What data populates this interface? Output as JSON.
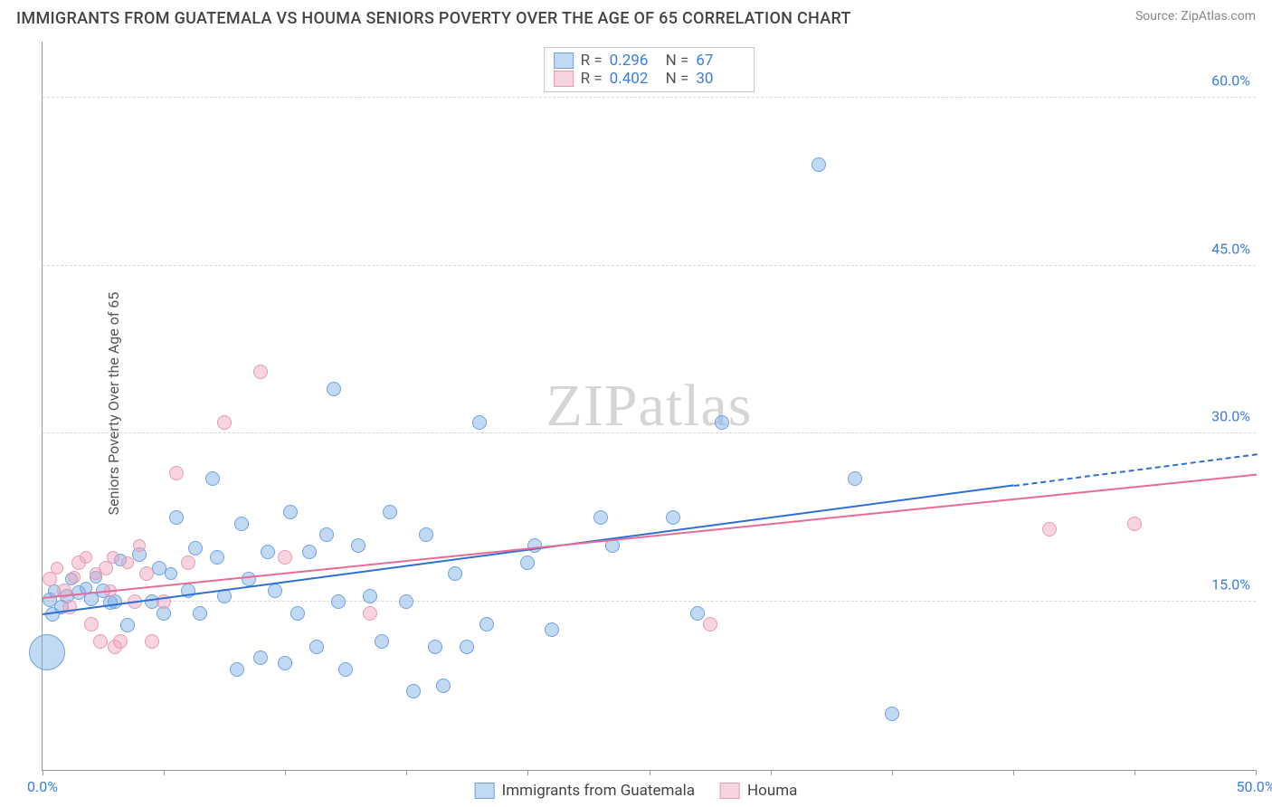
{
  "header": {
    "title": "IMMIGRANTS FROM GUATEMALA VS HOUMA SENIORS POVERTY OVER THE AGE OF 65 CORRELATION CHART",
    "source_label": "Source: ",
    "source_value": "ZipAtlas.com"
  },
  "ylabel": "Seniors Poverty Over the Age of 65",
  "watermark": {
    "a": "ZIP",
    "b": "atlas"
  },
  "chart": {
    "type": "scatter",
    "xlim": [
      0,
      50
    ],
    "ylim": [
      0,
      65
    ],
    "x_ticks": [
      0,
      5,
      10,
      15,
      20,
      25,
      30,
      35,
      40,
      45,
      50
    ],
    "x_tick_labels": {
      "0": "0.0%",
      "50": "50.0%"
    },
    "y_ticks": [
      15,
      30,
      45,
      60
    ],
    "y_tick_labels": {
      "15": "15.0%",
      "30": "30.0%",
      "45": "45.0%",
      "60": "60.0%"
    },
    "grid_color": "#d8d8d8",
    "axis_color": "#999999",
    "background_color": "#ffffff",
    "label_color": "#3b7dd8",
    "series": [
      {
        "key": "guatemala",
        "label": "Immigrants from Guatemala",
        "fill": "rgba(120,170,230,0.45)",
        "stroke": "#6fa3e0",
        "line_color": "#2e6fd6",
        "r_value": "0.296",
        "n_value": "67",
        "trend": {
          "x1": 0,
          "y1": 14.0,
          "x2": 40,
          "y2": 25.5,
          "extend_to": 50,
          "extend_y": 28.3
        },
        "points": [
          {
            "x": 0.2,
            "y": 10.5,
            "r": 20
          },
          {
            "x": 0.3,
            "y": 15.2,
            "r": 8
          },
          {
            "x": 0.4,
            "y": 13.9,
            "r": 8
          },
          {
            "x": 0.5,
            "y": 16.0,
            "r": 7
          },
          {
            "x": 0.8,
            "y": 14.5,
            "r": 8
          },
          {
            "x": 1.0,
            "y": 15.5,
            "r": 8
          },
          {
            "x": 1.2,
            "y": 17.0,
            "r": 7
          },
          {
            "x": 1.5,
            "y": 15.8,
            "r": 8
          },
          {
            "x": 1.8,
            "y": 16.2,
            "r": 7
          },
          {
            "x": 2.0,
            "y": 15.3,
            "r": 8
          },
          {
            "x": 2.2,
            "y": 17.2,
            "r": 7
          },
          {
            "x": 2.5,
            "y": 16.0,
            "r": 8
          },
          {
            "x": 2.8,
            "y": 14.9,
            "r": 8
          },
          {
            "x": 3.0,
            "y": 15.0,
            "r": 8
          },
          {
            "x": 3.2,
            "y": 18.7,
            "r": 7
          },
          {
            "x": 3.5,
            "y": 12.9,
            "r": 8
          },
          {
            "x": 4.0,
            "y": 19.2,
            "r": 8
          },
          {
            "x": 4.5,
            "y": 15.0,
            "r": 8
          },
          {
            "x": 5.0,
            "y": 14.0,
            "r": 8
          },
          {
            "x": 5.3,
            "y": 17.5,
            "r": 7
          },
          {
            "x": 5.5,
            "y": 22.5,
            "r": 8
          },
          {
            "x": 6.0,
            "y": 16.0,
            "r": 8
          },
          {
            "x": 6.3,
            "y": 19.8,
            "r": 8
          },
          {
            "x": 6.5,
            "y": 14.0,
            "r": 8
          },
          {
            "x": 7.0,
            "y": 26.0,
            "r": 8
          },
          {
            "x": 7.2,
            "y": 19.0,
            "r": 8
          },
          {
            "x": 7.5,
            "y": 15.5,
            "r": 8
          },
          {
            "x": 8.0,
            "y": 9.0,
            "r": 8
          },
          {
            "x": 8.2,
            "y": 22.0,
            "r": 8
          },
          {
            "x": 8.5,
            "y": 17.0,
            "r": 8
          },
          {
            "x": 9.0,
            "y": 10.0,
            "r": 8
          },
          {
            "x": 9.3,
            "y": 19.5,
            "r": 8
          },
          {
            "x": 9.6,
            "y": 16.0,
            "r": 8
          },
          {
            "x": 10.0,
            "y": 9.5,
            "r": 8
          },
          {
            "x": 10.2,
            "y": 23.0,
            "r": 8
          },
          {
            "x": 10.5,
            "y": 14.0,
            "r": 8
          },
          {
            "x": 11.0,
            "y": 19.5,
            "r": 8
          },
          {
            "x": 11.3,
            "y": 11.0,
            "r": 8
          },
          {
            "x": 11.7,
            "y": 21.0,
            "r": 8
          },
          {
            "x": 12.0,
            "y": 34.0,
            "r": 8
          },
          {
            "x": 12.2,
            "y": 15.0,
            "r": 8
          },
          {
            "x": 12.5,
            "y": 9.0,
            "r": 8
          },
          {
            "x": 13.0,
            "y": 20.0,
            "r": 8
          },
          {
            "x": 13.5,
            "y": 15.5,
            "r": 8
          },
          {
            "x": 14.0,
            "y": 11.5,
            "r": 8
          },
          {
            "x": 14.3,
            "y": 23.0,
            "r": 8
          },
          {
            "x": 15.0,
            "y": 15.0,
            "r": 8
          },
          {
            "x": 15.3,
            "y": 7.0,
            "r": 8
          },
          {
            "x": 15.8,
            "y": 21.0,
            "r": 8
          },
          {
            "x": 16.2,
            "y": 11.0,
            "r": 8
          },
          {
            "x": 16.5,
            "y": 7.5,
            "r": 8
          },
          {
            "x": 17.0,
            "y": 17.5,
            "r": 8
          },
          {
            "x": 17.5,
            "y": 11.0,
            "r": 8
          },
          {
            "x": 18.0,
            "y": 31.0,
            "r": 8
          },
          {
            "x": 18.3,
            "y": 13.0,
            "r": 8
          },
          {
            "x": 20.0,
            "y": 18.5,
            "r": 8
          },
          {
            "x": 20.3,
            "y": 20.0,
            "r": 8
          },
          {
            "x": 21.0,
            "y": 12.5,
            "r": 8
          },
          {
            "x": 23.0,
            "y": 22.5,
            "r": 8
          },
          {
            "x": 23.5,
            "y": 20.0,
            "r": 8
          },
          {
            "x": 26.0,
            "y": 22.5,
            "r": 8
          },
          {
            "x": 28.0,
            "y": 31.0,
            "r": 8
          },
          {
            "x": 32.0,
            "y": 54.0,
            "r": 8
          },
          {
            "x": 33.5,
            "y": 26.0,
            "r": 8
          },
          {
            "x": 35.0,
            "y": 5.0,
            "r": 8
          },
          {
            "x": 27.0,
            "y": 14.0,
            "r": 8
          },
          {
            "x": 4.8,
            "y": 18.0,
            "r": 8
          }
        ]
      },
      {
        "key": "houma",
        "label": "Houma",
        "fill": "rgba(240,160,185,0.45)",
        "stroke": "#e99ab5",
        "line_color": "#e86b98",
        "r_value": "0.402",
        "n_value": "30",
        "trend": {
          "x1": 0,
          "y1": 15.5,
          "x2": 50,
          "y2": 26.5,
          "extend_to": null,
          "extend_y": null
        },
        "points": [
          {
            "x": 0.3,
            "y": 17.0,
            "r": 8
          },
          {
            "x": 0.6,
            "y": 18.0,
            "r": 7
          },
          {
            "x": 0.9,
            "y": 16.0,
            "r": 8
          },
          {
            "x": 1.1,
            "y": 14.5,
            "r": 8
          },
          {
            "x": 1.3,
            "y": 17.2,
            "r": 7
          },
          {
            "x": 1.5,
            "y": 18.5,
            "r": 8
          },
          {
            "x": 1.8,
            "y": 19.0,
            "r": 7
          },
          {
            "x": 2.0,
            "y": 13.0,
            "r": 8
          },
          {
            "x": 2.2,
            "y": 17.5,
            "r": 7
          },
          {
            "x": 2.4,
            "y": 11.5,
            "r": 8
          },
          {
            "x": 2.6,
            "y": 18.0,
            "r": 8
          },
          {
            "x": 2.8,
            "y": 16.0,
            "r": 7
          },
          {
            "x": 3.0,
            "y": 11.0,
            "r": 8
          },
          {
            "x": 3.2,
            "y": 11.5,
            "r": 8
          },
          {
            "x": 3.5,
            "y": 18.5,
            "r": 7
          },
          {
            "x": 3.8,
            "y": 15.0,
            "r": 8
          },
          {
            "x": 4.0,
            "y": 20.0,
            "r": 7
          },
          {
            "x": 4.3,
            "y": 17.5,
            "r": 8
          },
          {
            "x": 4.5,
            "y": 11.5,
            "r": 8
          },
          {
            "x": 5.0,
            "y": 15.0,
            "r": 8
          },
          {
            "x": 5.5,
            "y": 26.5,
            "r": 8
          },
          {
            "x": 6.0,
            "y": 18.5,
            "r": 8
          },
          {
            "x": 7.5,
            "y": 31.0,
            "r": 8
          },
          {
            "x": 9.0,
            "y": 35.5,
            "r": 8
          },
          {
            "x": 10.0,
            "y": 19.0,
            "r": 8
          },
          {
            "x": 13.5,
            "y": 14.0,
            "r": 8
          },
          {
            "x": 27.5,
            "y": 13.0,
            "r": 8
          },
          {
            "x": 41.5,
            "y": 21.5,
            "r": 8
          },
          {
            "x": 45.0,
            "y": 22.0,
            "r": 8
          },
          {
            "x": 2.9,
            "y": 19.0,
            "r": 7
          }
        ]
      }
    ]
  },
  "stats_legend": {
    "r_label": "R =",
    "n_label": "N ="
  },
  "bottom_legend_labels": [
    "Immigrants from Guatemala",
    "Houma"
  ]
}
